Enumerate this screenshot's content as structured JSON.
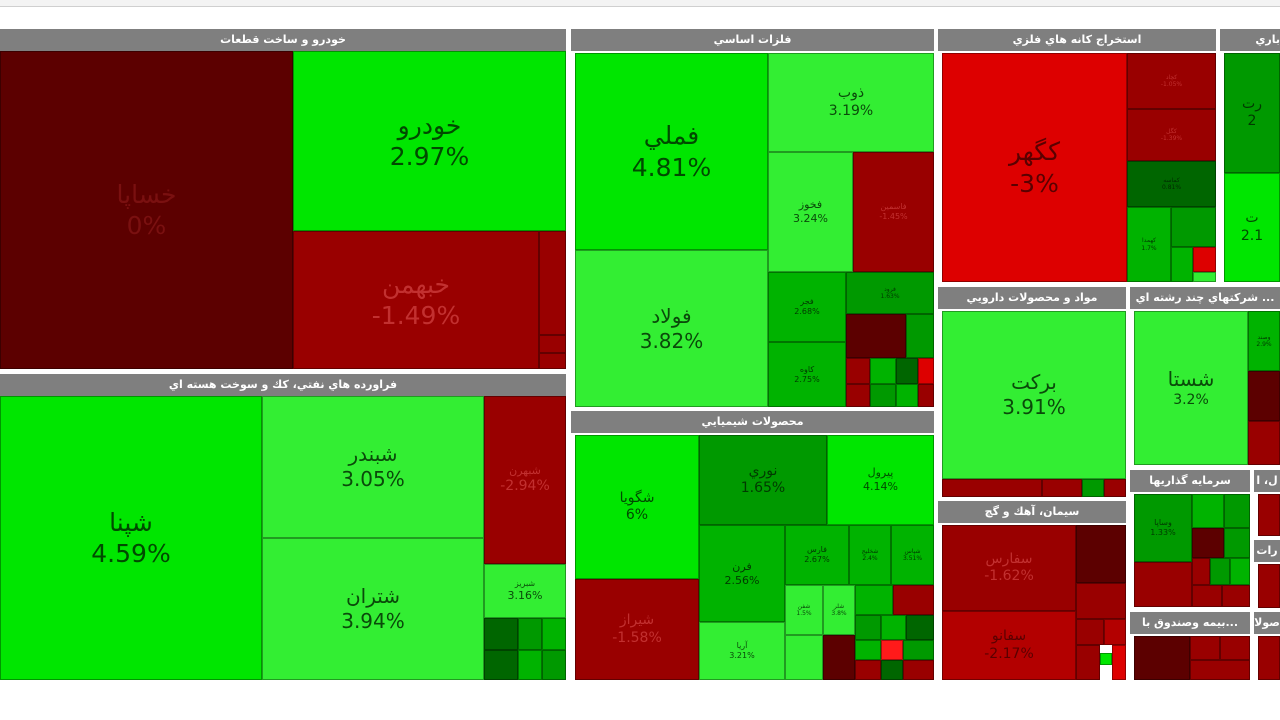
{
  "colors": {
    "header_bg": "#7f7f7f",
    "header_text": "#ffffff",
    "positive_bright": "#00e600",
    "positive_light": "#33ee33",
    "positive_dark": "#009900",
    "negative_dark": "#5c0000",
    "negative": "#990000",
    "negative_bright": "#dd0000"
  },
  "sectors": {
    "auto": {
      "title": "خودرو و ساخت قطعات",
      "tiles": {
        "khesapa": {
          "symbol": "خساپا",
          "change": "0%"
        },
        "khodro": {
          "symbol": "خودرو",
          "change": "2.97%"
        },
        "khabahman": {
          "symbol": "خبهمن",
          "change": "-1.49%"
        }
      }
    },
    "oil": {
      "title": "فراورده هاي نفتي، كك و سوخت هسته اي",
      "tiles": {
        "shepna": {
          "symbol": "شپنا",
          "change": "4.59%"
        },
        "shebandar": {
          "symbol": "شبندر",
          "change": "3.05%"
        },
        "shetran": {
          "symbol": "شتران",
          "change": "3.94%"
        },
        "shebahrn": {
          "symbol": "شبهرن",
          "change": "-2.94%"
        },
        "shebriz": {
          "symbol": "شبريز",
          "change": "3.16%"
        }
      }
    },
    "metals": {
      "title": "فلزات اساسي",
      "tiles": {
        "fameli": {
          "symbol": "فملي",
          "change": "4.81%"
        },
        "folad": {
          "symbol": "فولاد",
          "change": "3.82%"
        },
        "zob": {
          "symbol": "ذوب",
          "change": "3.19%"
        },
        "fakhooz": {
          "symbol": "فخوز",
          "change": "3.24%"
        },
        "fajr": {
          "symbol": "فجر",
          "change": "2.68%"
        },
        "kaveh": {
          "symbol": "کاوه",
          "change": "2.75%"
        },
        "m_red": {
          "symbol": "فاسمين",
          "change": "-1.45%"
        },
        "m_green": {
          "symbol": "فرود",
          "change": "1.63%"
        }
      }
    },
    "chemical": {
      "title": "محصولات شيميايي",
      "tiles": {
        "shegoya": {
          "symbol": "شگويا",
          "change": "6%"
        },
        "shiraz": {
          "symbol": "شيراز",
          "change": "-1.58%"
        },
        "noori": {
          "symbol": "نوري",
          "change": "1.65%"
        },
        "pirol": {
          "symbol": "پيرول",
          "change": "4.14%"
        },
        "fern": {
          "symbol": "فرن",
          "change": "2.56%"
        },
        "aria": {
          "symbol": "آريا",
          "change": "3.21%"
        },
        "fars": {
          "symbol": "فارس",
          "change": "2.67%"
        },
        "shekhlij": {
          "symbol": "شخليج",
          "change": "2.4%"
        },
        "shepas": {
          "symbol": "شپاس",
          "change": "3.51%"
        },
        "shefan": {
          "symbol": "شفن",
          "change": "1.5%"
        },
        "shelor": {
          "symbol": "شلر",
          "change": "3.8%"
        }
      }
    },
    "mining": {
      "title": "استخراج كانه هاي فلزي",
      "tiles": {
        "kegohar": {
          "symbol": "كگهر",
          "change": "-3%"
        },
        "kechad": {
          "symbol": "كچاد",
          "change": "-1.05%"
        },
        "kegol": {
          "symbol": "كگل",
          "change": "-1.39%"
        },
        "kemaseh": {
          "symbol": "كماسه",
          "change": "0.81%"
        },
        "kehamda": {
          "symbol": "كهمدا",
          "change": "1.7%"
        }
      }
    },
    "pharma": {
      "title": "مواد و محصولات دارويي",
      "tiles": {
        "barekat": {
          "symbol": "بركت",
          "change": "3.91%"
        }
      }
    },
    "cement": {
      "title": "سيمان، آهك و گچ",
      "tiles": {
        "sefares": {
          "symbol": "سفارس",
          "change": "-1.62%"
        },
        "sefano": {
          "symbol": "سفانو",
          "change": "-2.17%"
        }
      }
    },
    "multi": {
      "title": "... شركتهاي چند رشته اي",
      "tiles": {
        "shasta": {
          "symbol": "شستا",
          "change": "3.2%"
        },
        "side": {
          "symbol": "وصند",
          "change": "2.9%"
        }
      }
    },
    "invest": {
      "title": "سرمايه گذاريها",
      "tiles": {
        "vesapa": {
          "symbol": "وساپا",
          "change": "1.33%"
        }
      }
    },
    "insurance": {
      "title": "...بيمه وصندوق با"
    },
    "edge": {
      "title_top": "باري",
      "sym_top": "رت",
      "val_top": "2",
      "sym_mid": "ت",
      "val_mid": "2.1",
      "label_a": "ل، ا",
      "label_b": "رات",
      "label_c": "صولا"
    }
  }
}
